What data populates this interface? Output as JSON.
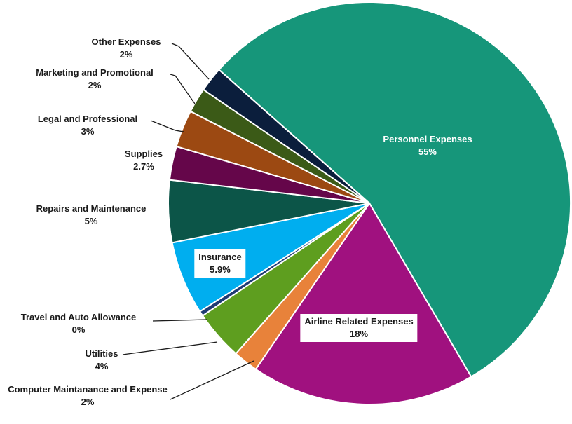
{
  "chart_data": {
    "type": "pie",
    "categories": [
      "Personnel Expenses",
      "Airline Related Expenses",
      "Computer Maintanance and Expense",
      "Utilities",
      "Travel and Auto Allowance",
      "Insurance",
      "Repairs and Maintenance",
      "Supplies",
      "Legal and Professional",
      "Marketing and Promotional",
      "Other Expenses"
    ],
    "values": [
      55,
      18,
      2,
      4,
      0.4,
      5.9,
      5,
      2.7,
      3,
      2,
      2
    ],
    "value_labels": [
      "55%",
      "18%",
      "2%",
      "4%",
      "0%",
      "5.9%",
      "5%",
      "2.7%",
      "3%",
      "2%",
      "2%"
    ],
    "colors": [
      "#16967a",
      "#a0117f",
      "#e8823a",
      "#5e9e1f",
      "#1f3b73",
      "#00aeef",
      "#0c5548",
      "#65064a",
      "#9c4912",
      "#3b5a17",
      "#0b1e3c"
    ]
  }
}
